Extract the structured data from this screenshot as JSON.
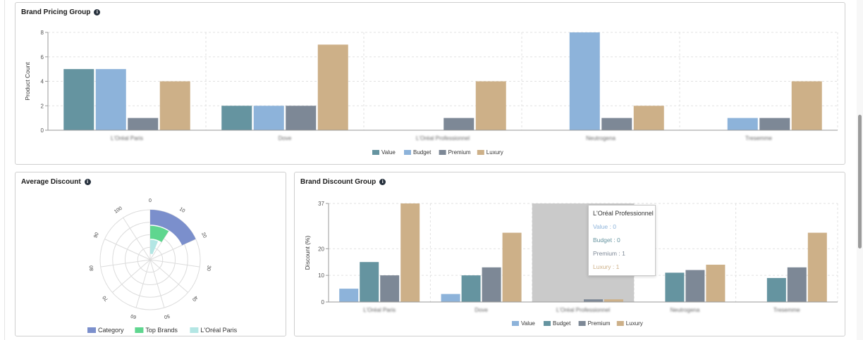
{
  "panels": {
    "brand_pricing": {
      "title": "Brand Pricing Group"
    },
    "average_discount": {
      "title": "Average Discount"
    },
    "brand_discount": {
      "title": "Brand Discount Group"
    }
  },
  "colors": {
    "value": "#8db3da",
    "budget": "#6594a0",
    "premium": "#7d8896",
    "luxury": "#cdb088",
    "category": "#7b8fcc",
    "top_brands": "#5fd68f",
    "loreal_paris": "#b3e6e4",
    "hover_band": "#cacaca"
  },
  "chart_data": [
    {
      "type": "bar",
      "title": "Brand Pricing Group",
      "ylabel": "Product Count",
      "ylim": [
        0,
        8
      ],
      "yticks": [
        0,
        2,
        4,
        6,
        8
      ],
      "categories": [
        "L'Oréal Paris",
        "Dove",
        "L'Oréal Professionnel",
        "Neutrogena",
        "Tresemme"
      ],
      "series": [
        {
          "name": "Value",
          "color": "#6594a0",
          "values": [
            5,
            2,
            0,
            0,
            0
          ]
        },
        {
          "name": "Budget",
          "color": "#8db3da",
          "values": [
            5,
            2,
            0,
            8,
            1
          ]
        },
        {
          "name": "Premium",
          "color": "#7d8896",
          "values": [
            1,
            2,
            1,
            1,
            1
          ]
        },
        {
          "name": "Luxury",
          "color": "#cdb088",
          "values": [
            4,
            7,
            4,
            2,
            4
          ]
        }
      ],
      "legend": "bottom",
      "grid": true
    },
    {
      "type": "polar",
      "title": "Average Discount",
      "angle_ticks": [
        "0",
        "10",
        "20",
        "30",
        "40",
        "50",
        "60",
        "70",
        "80",
        "90",
        "100"
      ],
      "series": [
        {
          "name": "Category",
          "color": "#7b8fcc",
          "value": 20
        },
        {
          "name": "Top Brands",
          "color": "#5fd68f",
          "value": 10
        },
        {
          "name": "L'Oréal Paris",
          "color": "#b3e6e4",
          "value": 7
        }
      ],
      "legend": "bottom"
    },
    {
      "type": "bar",
      "title": "Brand Discount Group",
      "ylabel": "Discount (%)",
      "ylim": [
        0,
        37
      ],
      "yticks": [
        0,
        10,
        20,
        37
      ],
      "categories": [
        "L'Oréal Paris",
        "Dove",
        "L'Oréal Professionnel",
        "Neutrogena",
        "Tresemme"
      ],
      "series": [
        {
          "name": "Value",
          "color": "#8db3da",
          "values": [
            5,
            3,
            0,
            0,
            0
          ]
        },
        {
          "name": "Budget",
          "color": "#6594a0",
          "values": [
            15,
            10,
            0,
            11,
            9
          ]
        },
        {
          "name": "Premium",
          "color": "#7d8896",
          "values": [
            10,
            13,
            1,
            12,
            13
          ]
        },
        {
          "name": "Luxury",
          "color": "#cdb088",
          "values": [
            37,
            26,
            1,
            14,
            26
          ]
        }
      ],
      "hover_index": 2,
      "legend": "bottom",
      "grid": true
    }
  ],
  "tooltip": {
    "title": "L'Oréal Professionnel",
    "value": "Value : 0",
    "budget": "Budget : 0",
    "premium": "Premium : 1",
    "luxury": "Luxury : 1"
  }
}
